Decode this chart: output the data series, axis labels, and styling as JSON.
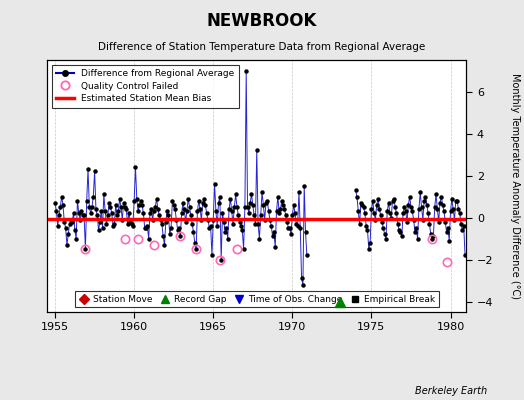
{
  "title": "NEWBROOK",
  "subtitle": "Difference of Station Temperature Data from Regional Average",
  "ylabel": "Monthly Temperature Anomaly Difference (°C)",
  "background_color": "#e8e8e8",
  "plot_bg_color": "#ffffff",
  "xlim": [
    1954.5,
    1981.0
  ],
  "ylim": [
    -4.5,
    7.5
  ],
  "yticks": [
    -4,
    -2,
    0,
    2,
    4,
    6
  ],
  "xticks": [
    1955,
    1960,
    1965,
    1970,
    1975,
    1980
  ],
  "bias_value": -0.05,
  "record_gap_x": 1973.0,
  "record_gap_y": -4.0,
  "line_color": "#0000cc",
  "marker_color": "#000000",
  "bias_color": "#ff0000",
  "qc_color": "#ff69b4",
  "grid_color": "#c8c8c8",
  "watermark": "Berkeley Earth",
  "seg1_x": [
    1955.0,
    1955.083,
    1955.167,
    1955.25,
    1955.333,
    1955.417,
    1955.5,
    1955.583,
    1955.667,
    1955.75,
    1955.833,
    1955.917,
    1956.0,
    1956.083,
    1956.167,
    1956.25,
    1956.333,
    1956.417,
    1956.5,
    1956.583,
    1956.667,
    1956.75,
    1956.833,
    1956.917,
    1957.0,
    1957.083,
    1957.167,
    1957.25,
    1957.333,
    1957.417,
    1957.5,
    1957.583,
    1957.667,
    1957.75,
    1957.833,
    1957.917,
    1958.0,
    1958.083,
    1958.167,
    1958.25,
    1958.333,
    1958.417,
    1958.5,
    1958.583,
    1958.667,
    1958.75,
    1958.833,
    1958.917,
    1959.0,
    1959.083,
    1959.167,
    1959.25,
    1959.333,
    1959.417,
    1959.5,
    1959.583,
    1959.667,
    1959.75,
    1959.833,
    1959.917,
    1960.0,
    1960.083,
    1960.167,
    1960.25,
    1960.333,
    1960.417,
    1960.5,
    1960.583,
    1960.667,
    1960.75,
    1960.833,
    1960.917,
    1961.0,
    1961.083,
    1961.167,
    1961.25,
    1961.333,
    1961.417,
    1961.5,
    1961.583,
    1961.667,
    1961.75,
    1961.833,
    1961.917,
    1962.0,
    1962.083,
    1962.167,
    1962.25,
    1962.333,
    1962.417,
    1962.5,
    1962.583,
    1962.667,
    1962.75,
    1962.833,
    1962.917,
    1963.0,
    1963.083,
    1963.167,
    1963.25,
    1963.333,
    1963.417,
    1963.5,
    1963.583,
    1963.667,
    1963.75,
    1963.833,
    1963.917,
    1964.0,
    1964.083,
    1964.167,
    1964.25,
    1964.333,
    1964.417,
    1964.5,
    1964.583,
    1964.667,
    1964.75,
    1964.833,
    1964.917,
    1965.0,
    1965.083,
    1965.167,
    1965.25,
    1965.333,
    1965.417,
    1965.5,
    1965.583,
    1965.667,
    1965.75,
    1965.833,
    1965.917,
    1966.0,
    1966.083,
    1966.167,
    1966.25,
    1966.333,
    1966.417,
    1966.5,
    1966.583,
    1966.667,
    1966.75,
    1966.833,
    1966.917,
    1967.0,
    1967.083,
    1967.167,
    1967.25,
    1967.333,
    1967.417,
    1967.5,
    1967.583,
    1967.667,
    1967.75,
    1967.833,
    1967.917,
    1968.0,
    1968.083,
    1968.167,
    1968.25,
    1968.333,
    1968.417,
    1968.5,
    1968.583,
    1968.667,
    1968.75,
    1968.833,
    1968.917,
    1969.0,
    1969.083,
    1969.167,
    1969.25,
    1969.333,
    1969.417,
    1969.5,
    1969.583,
    1969.667,
    1969.75,
    1969.833,
    1969.917,
    1970.0,
    1970.083,
    1970.167,
    1970.25,
    1970.333,
    1970.417,
    1970.5,
    1970.583,
    1970.667,
    1970.75,
    1970.833,
    1970.917
  ],
  "seg1_y": [
    0.7,
    0.3,
    -0.4,
    0.1,
    0.5,
    1.0,
    0.6,
    -0.2,
    -0.5,
    -1.3,
    -0.8,
    -0.3,
    -0.1,
    -0.2,
    0.2,
    -0.6,
    -1.0,
    0.8,
    0.2,
    -0.1,
    0.3,
    0.1,
    0.1,
    -1.5,
    0.8,
    2.3,
    0.5,
    0.2,
    0.5,
    1.0,
    2.2,
    0.4,
    0.1,
    -0.6,
    -0.2,
    0.3,
    -0.5,
    1.1,
    0.3,
    -0.3,
    0.1,
    0.7,
    0.5,
    0.2,
    -0.4,
    -0.3,
    0.6,
    0.1,
    0.3,
    0.9,
    0.5,
    -0.1,
    0.7,
    0.5,
    0.4,
    -0.3,
    0.2,
    -0.2,
    -0.3,
    -0.4,
    0.8,
    2.4,
    0.9,
    0.3,
    0.6,
    0.8,
    0.6,
    0.2,
    -0.5,
    -0.5,
    -0.4,
    -1.0,
    0.2,
    0.4,
    -0.1,
    0.3,
    0.5,
    0.9,
    0.4,
    0.1,
    -0.1,
    -0.3,
    -0.9,
    -1.3,
    -0.2,
    0.3,
    0.1,
    -0.8,
    -0.5,
    0.8,
    0.6,
    0.4,
    -0.1,
    -0.6,
    -0.5,
    -0.9,
    0.2,
    0.7,
    0.4,
    -0.2,
    0.3,
    0.9,
    0.5,
    0.1,
    -0.3,
    -0.7,
    -1.2,
    -1.5,
    0.3,
    0.8,
    0.4,
    -0.1,
    0.7,
    0.9,
    0.6,
    0.2,
    -0.1,
    -0.5,
    -0.4,
    -1.8,
    -0.1,
    1.6,
    0.3,
    -0.4,
    0.7,
    1.0,
    -2.0,
    0.2,
    -0.2,
    -0.7,
    -0.5,
    -1.0,
    0.4,
    0.9,
    0.3,
    -0.3,
    0.5,
    1.1,
    0.5,
    0.1,
    -0.2,
    -0.4,
    -0.6,
    -1.5,
    0.5,
    7.0,
    0.5,
    0.2,
    0.7,
    1.1,
    0.6,
    0.1,
    -0.3,
    3.2,
    -0.3,
    -1.0,
    0.1,
    1.2,
    0.6,
    -0.1,
    0.7,
    0.8,
    0.3,
    -0.1,
    -0.4,
    -0.9,
    -0.7,
    -1.4,
    0.3,
    1.0,
    0.2,
    0.4,
    0.8,
    0.6,
    0.4,
    0.1,
    -0.2,
    -0.5,
    -0.5,
    -0.8,
    0.1,
    0.6,
    0.2,
    -0.3,
    -0.4,
    1.2,
    -0.5,
    -2.9,
    -3.2,
    1.5,
    -0.7,
    -1.8
  ],
  "seg2_x": [
    1974.0,
    1974.083,
    1974.167,
    1974.25,
    1974.333,
    1974.417,
    1974.5,
    1974.583,
    1974.667,
    1974.75,
    1974.833,
    1974.917,
    1975.0,
    1975.083,
    1975.167,
    1975.25,
    1975.333,
    1975.417,
    1975.5,
    1975.583,
    1975.667,
    1975.75,
    1975.833,
    1975.917,
    1976.0,
    1976.083,
    1976.167,
    1976.25,
    1976.333,
    1976.417,
    1976.5,
    1976.583,
    1976.667,
    1976.75,
    1976.833,
    1976.917,
    1977.0,
    1977.083,
    1977.167,
    1977.25,
    1977.333,
    1977.417,
    1977.5,
    1977.583,
    1977.667,
    1977.75,
    1977.833,
    1977.917,
    1978.0,
    1978.083,
    1978.167,
    1978.25,
    1978.333,
    1978.417,
    1978.5,
    1978.583,
    1978.667,
    1978.75,
    1978.833,
    1978.917,
    1979.0,
    1979.083,
    1979.167,
    1979.25,
    1979.333,
    1979.417,
    1979.5,
    1979.583,
    1979.667,
    1979.75,
    1979.833,
    1979.917,
    1980.0,
    1980.083,
    1980.167,
    1980.25,
    1980.333,
    1980.417,
    1980.5,
    1980.583,
    1980.667,
    1980.75,
    1980.833,
    1980.917
  ],
  "seg2_y": [
    1.3,
    1.0,
    0.3,
    -0.3,
    0.7,
    0.6,
    0.5,
    0.2,
    -0.4,
    -0.6,
    -1.5,
    -1.2,
    0.4,
    0.8,
    0.2,
    -0.1,
    0.6,
    0.9,
    0.4,
    0.1,
    -0.2,
    -0.5,
    -0.8,
    -1.0,
    0.3,
    0.7,
    0.2,
    0.0,
    0.8,
    0.9,
    0.5,
    0.2,
    -0.3,
    -0.6,
    -0.7,
    -0.9,
    0.2,
    0.5,
    0.3,
    -0.2,
    0.6,
    1.0,
    0.5,
    0.3,
    -0.1,
    -0.7,
    -0.5,
    -1.0,
    0.4,
    1.2,
    0.5,
    -0.1,
    0.8,
    1.0,
    0.6,
    0.2,
    -0.3,
    -0.8,
    -1.0,
    -0.9,
    0.5,
    1.1,
    0.4,
    -0.2,
    0.7,
    1.0,
    0.6,
    0.3,
    -0.2,
    -0.7,
    -0.5,
    -1.1,
    0.3,
    0.9,
    0.4,
    -0.1,
    0.8,
    0.8,
    0.4,
    0.2,
    -0.3,
    -0.6,
    -0.4,
    -1.8
  ],
  "qc_failed_x": [
    1956.917,
    1959.417,
    1960.25,
    1961.25,
    1962.917,
    1963.917,
    1965.417,
    1966.5,
    1978.833,
    1979.75
  ],
  "qc_failed_y": [
    -1.5,
    -1.0,
    -1.0,
    -1.3,
    -0.9,
    -1.5,
    -2.0,
    -1.5,
    -1.0,
    -2.1
  ]
}
